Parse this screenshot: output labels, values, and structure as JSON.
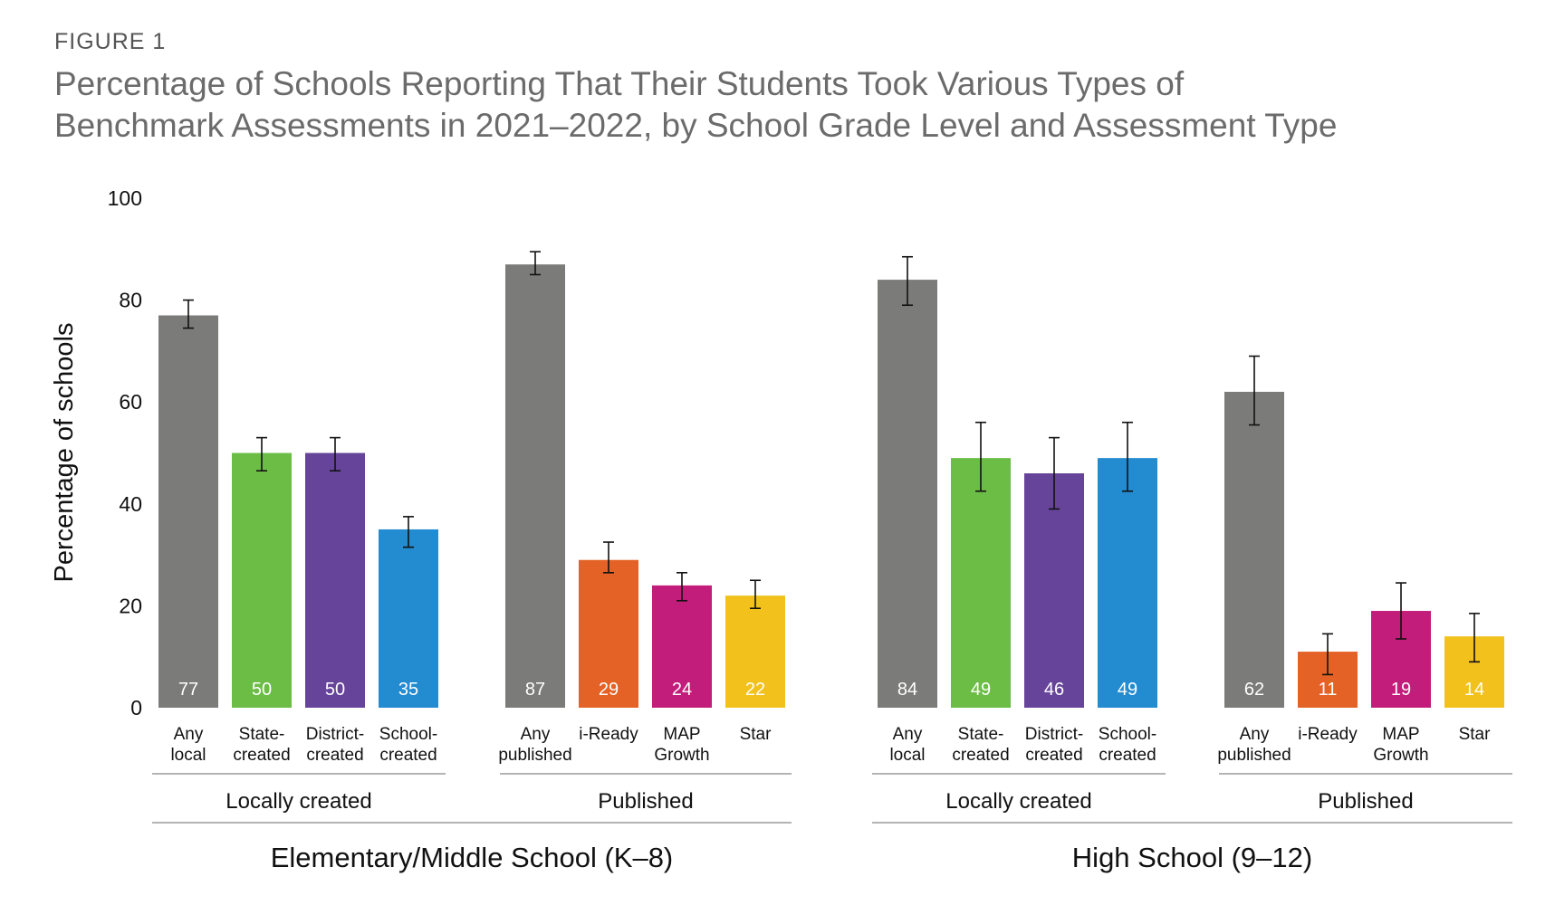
{
  "figure_label": "FIGURE 1",
  "title_line1": "Percentage of Schools Reporting That Their Students Took Various Types of",
  "title_line2": "Benchmark Assessments in 2021–2022, by School Grade Level and Assessment Type",
  "chart_data": {
    "type": "bar",
    "title": "Percentage of Schools Reporting That Their Students Took Various Types of Benchmark Assessments in 2021–2022, by School Grade Level and Assessment Type",
    "ylabel": "Percentage of schools",
    "xlabel": "",
    "ylim": [
      0,
      100
    ],
    "yticks": [
      0,
      20,
      40,
      60,
      80,
      100
    ],
    "grid": false,
    "colors": {
      "any": "#7b7b79",
      "state": "#6cbd45",
      "district": "#664499",
      "school": "#238bcf",
      "iready": "#e56226",
      "map": "#c21d7a",
      "star": "#f2c11b"
    },
    "sections": [
      {
        "label": "Elementary/Middle School (K–8)",
        "groups": [
          {
            "label": "Locally created",
            "bars": [
              {
                "label": [
                  "Any",
                  "local"
                ],
                "value": 77,
                "err": [
                  74.5,
                  80
                ],
                "color_key": "any"
              },
              {
                "label": [
                  "State-",
                  "created"
                ],
                "value": 50,
                "err": [
                  46.5,
                  53
                ],
                "color_key": "state"
              },
              {
                "label": [
                  "District-",
                  "created"
                ],
                "value": 50,
                "err": [
                  46.5,
                  53
                ],
                "color_key": "district"
              },
              {
                "label": [
                  "School-",
                  "created"
                ],
                "value": 35,
                "err": [
                  31.5,
                  37.5
                ],
                "color_key": "school"
              }
            ]
          },
          {
            "label": "Published",
            "bars": [
              {
                "label": [
                  "Any",
                  "published"
                ],
                "value": 87,
                "err": [
                  85,
                  89.5
                ],
                "color_key": "any"
              },
              {
                "label": [
                  "i-Ready"
                ],
                "value": 29,
                "err": [
                  26.5,
                  32.5
                ],
                "color_key": "iready"
              },
              {
                "label": [
                  "MAP",
                  "Growth"
                ],
                "value": 24,
                "err": [
                  21,
                  26.5
                ],
                "color_key": "map"
              },
              {
                "label": [
                  "Star"
                ],
                "value": 22,
                "err": [
                  19.5,
                  25
                ],
                "color_key": "star"
              }
            ]
          }
        ]
      },
      {
        "label": "High School (9–12)",
        "groups": [
          {
            "label": "Locally created",
            "bars": [
              {
                "label": [
                  "Any",
                  "local"
                ],
                "value": 84,
                "err": [
                  79,
                  88.5
                ],
                "color_key": "any"
              },
              {
                "label": [
                  "State-",
                  "created"
                ],
                "value": 49,
                "err": [
                  42.5,
                  56
                ],
                "color_key": "state"
              },
              {
                "label": [
                  "District-",
                  "created"
                ],
                "value": 46,
                "err": [
                  39,
                  53
                ],
                "color_key": "district"
              },
              {
                "label": [
                  "School-",
                  "created"
                ],
                "value": 49,
                "err": [
                  42.5,
                  56
                ],
                "color_key": "school"
              }
            ]
          },
          {
            "label": "Published",
            "bars": [
              {
                "label": [
                  "Any",
                  "published"
                ],
                "value": 62,
                "err": [
                  55.5,
                  69
                ],
                "color_key": "any"
              },
              {
                "label": [
                  "i-Ready"
                ],
                "value": 11,
                "err": [
                  6.5,
                  14.5
                ],
                "color_key": "iready"
              },
              {
                "label": [
                  "MAP",
                  "Growth"
                ],
                "value": 19,
                "err": [
                  13.5,
                  24.5
                ],
                "color_key": "map"
              },
              {
                "label": [
                  "Star"
                ],
                "value": 14,
                "err": [
                  9,
                  18.5
                ],
                "color_key": "star"
              }
            ]
          }
        ]
      }
    ]
  }
}
